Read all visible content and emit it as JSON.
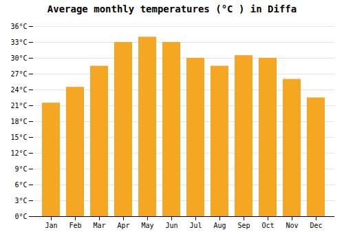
{
  "chart_data": {
    "type": "bar",
    "title": "Average monthly temperatures (°C ) in Diffa",
    "categories": [
      "Jan",
      "Feb",
      "Mar",
      "Apr",
      "May",
      "Jun",
      "Jul",
      "Aug",
      "Sep",
      "Oct",
      "Nov",
      "Dec"
    ],
    "values": [
      21.5,
      24.5,
      28.5,
      33.0,
      34.0,
      33.0,
      30.0,
      28.5,
      30.5,
      30.0,
      26.0,
      22.5
    ],
    "color": "#F5A623",
    "ylim": [
      0,
      36
    ],
    "yticks": [
      {
        "value": 0,
        "label": "0°C"
      },
      {
        "value": 3,
        "label": "3°C"
      },
      {
        "value": 6,
        "label": "6°C"
      },
      {
        "value": 9,
        "label": "9°C"
      },
      {
        "value": 12,
        "label": "12°C"
      },
      {
        "value": 15,
        "label": "15°C"
      },
      {
        "value": 18,
        "label": "18°C"
      },
      {
        "value": 21,
        "label": "21°C"
      },
      {
        "value": 24,
        "label": "24°C"
      },
      {
        "value": 27,
        "label": "27°C"
      },
      {
        "value": 30,
        "label": "30°C"
      },
      {
        "value": 33,
        "label": "33°C"
      },
      {
        "value": 36,
        "label": "36°C"
      }
    ],
    "grid": true
  }
}
